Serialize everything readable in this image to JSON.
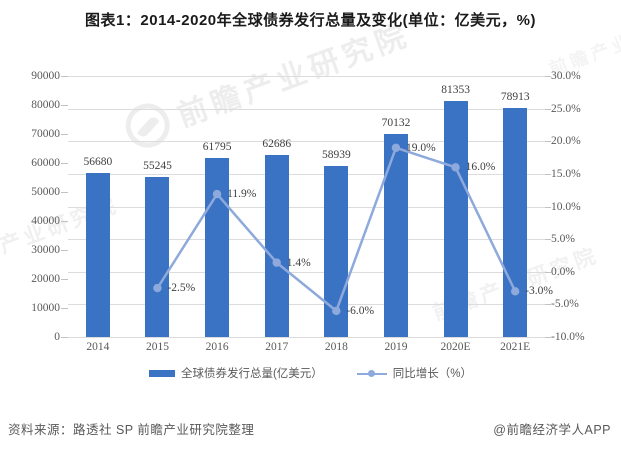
{
  "title": "图表1：2014-2020年全球债券发行总量及变化(单位：亿美元，%)",
  "watermark": {
    "text": "前瞻产业研究院"
  },
  "footer": {
    "source": "资料来源：路透社 SP 前瞻产业研究院整理",
    "brand": "@前瞻经济学人APP"
  },
  "chart_data": {
    "type": "combo-bar-line",
    "categories": [
      "2014",
      "2015",
      "2016",
      "2017",
      "2018",
      "2019",
      "2020E",
      "2021E"
    ],
    "series": [
      {
        "name": "全球债券发行总量(亿美元）",
        "chart_type": "bar",
        "axis": "left",
        "color": "#3b73c4",
        "values": [
          56680,
          55245,
          61795,
          62686,
          58939,
          70132,
          81353,
          78913
        ],
        "labels": [
          "56680",
          "55245",
          "61795",
          "62686",
          "58939",
          "70132",
          "81353",
          "78913"
        ]
      },
      {
        "name": "同比增长（%）",
        "chart_type": "line",
        "axis": "right",
        "color": "#8ea9db",
        "values": [
          null,
          -2.5,
          11.9,
          1.4,
          -6.0,
          19.0,
          16.0,
          -3.0
        ],
        "labels": [
          "",
          "-2.5%",
          "11.9%",
          "1.4%",
          "-6.0%",
          "19.0%",
          "16.0%",
          "-3.0%"
        ]
      }
    ],
    "left_axis": {
      "min": 0,
      "max": 90000,
      "step": 10000,
      "tick_labels": [
        "0",
        "10000",
        "20000",
        "30000",
        "40000",
        "50000",
        "60000",
        "70000",
        "80000",
        "90000"
      ]
    },
    "right_axis": {
      "min": -10,
      "max": 30,
      "step": 5,
      "tick_labels": [
        "-10.0%",
        "-5.0%",
        "0.0%",
        "5.0%",
        "10.0%",
        "15.0%",
        "20.0%",
        "25.0%",
        "30.0%"
      ]
    },
    "grid": true,
    "legend_position": "bottom"
  }
}
